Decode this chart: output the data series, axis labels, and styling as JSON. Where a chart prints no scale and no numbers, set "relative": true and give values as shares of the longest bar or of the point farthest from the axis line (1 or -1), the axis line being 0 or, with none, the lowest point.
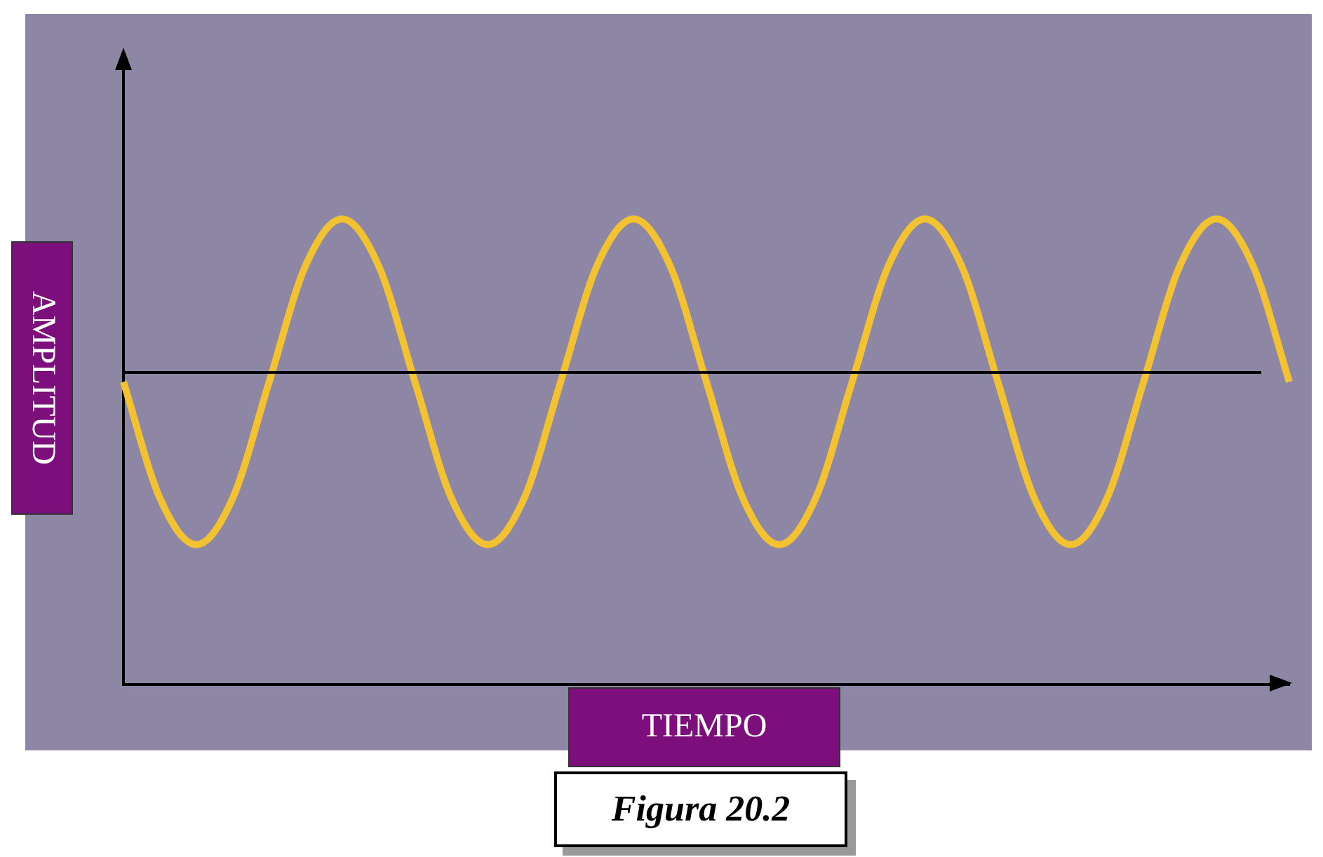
{
  "chart_data": {
    "type": "line",
    "relative": true,
    "xlabel": "TIEMPO",
    "ylabel": "AMPLITUD",
    "annotations": [
      "Figura 20.2"
    ],
    "categories": [
      null,
      null,
      null,
      null,
      null,
      null,
      null,
      null,
      null,
      null,
      null,
      null,
      null,
      null,
      null,
      null,
      null,
      null,
      null,
      null,
      null,
      null,
      null,
      null,
      null,
      null,
      null,
      null,
      null,
      null,
      null,
      null,
      null
    ],
    "series": [
      {
        "color": "#f2c230",
        "values": [
          0.65,
          0.4,
          0.3,
          0.4,
          0.65,
          0.9,
          1.0,
          0.9,
          0.65,
          0.4,
          0.3,
          0.4,
          0.65,
          0.9,
          1.0,
          0.9,
          0.65,
          0.4,
          0.3,
          0.4,
          0.65,
          0.9,
          1.0,
          0.9,
          0.65,
          0.4,
          0.3,
          0.4,
          0.65,
          0.9,
          1.0,
          0.9,
          0.65
        ]
      }
    ],
    "ref_lines": [
      {
        "axis": "y",
        "value": 0.67,
        "color": "#000000"
      }
    ],
    "grid": false,
    "legend": false
  }
}
